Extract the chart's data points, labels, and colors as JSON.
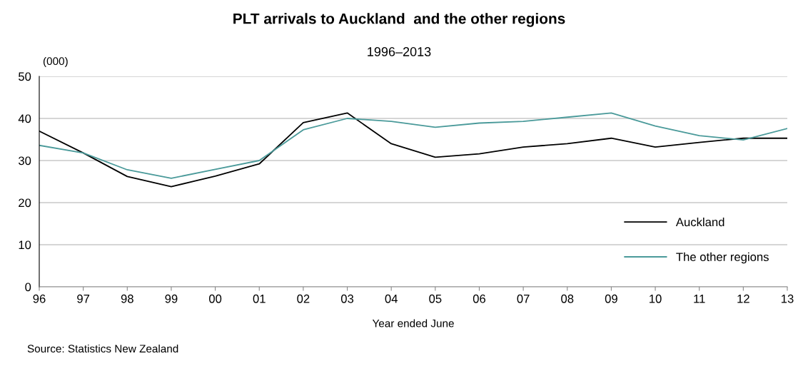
{
  "chart_data": {
    "type": "line",
    "title": "PLT arrivals to Auckland  and the other regions",
    "subtitle": "1996–2013",
    "ylabel": "(000)",
    "xlabel": "Year ended June",
    "categories": [
      "96",
      "97",
      "98",
      "99",
      "00",
      "01",
      "02",
      "03",
      "04",
      "05",
      "06",
      "07",
      "08",
      "09",
      "10",
      "11",
      "12",
      "13"
    ],
    "series": [
      {
        "name": "Auckland",
        "color": "#000000",
        "values": [
          37,
          31.8,
          26.2,
          23.8,
          26.3,
          29.2,
          39,
          41.3,
          34,
          30.8,
          31.6,
          33.2,
          34,
          35.3,
          33.2,
          34.3,
          35.3,
          35.3
        ]
      },
      {
        "name": "The other regions",
        "color": "#4a9a9a",
        "values": [
          33.6,
          31.8,
          27.8,
          25.8,
          27.9,
          30,
          37.3,
          40,
          39.3,
          37.9,
          38.9,
          39.3,
          40.3,
          41.3,
          38.2,
          35.9,
          34.9,
          37.6
        ]
      }
    ],
    "ylim": [
      0,
      50
    ],
    "yticks": [
      0,
      10,
      20,
      30,
      40,
      50
    ],
    "grid": "y",
    "legend": "bottom right",
    "marker": "none",
    "line_style": "solid",
    "annotations": [
      "Source: Statistics New Zealand"
    ]
  }
}
